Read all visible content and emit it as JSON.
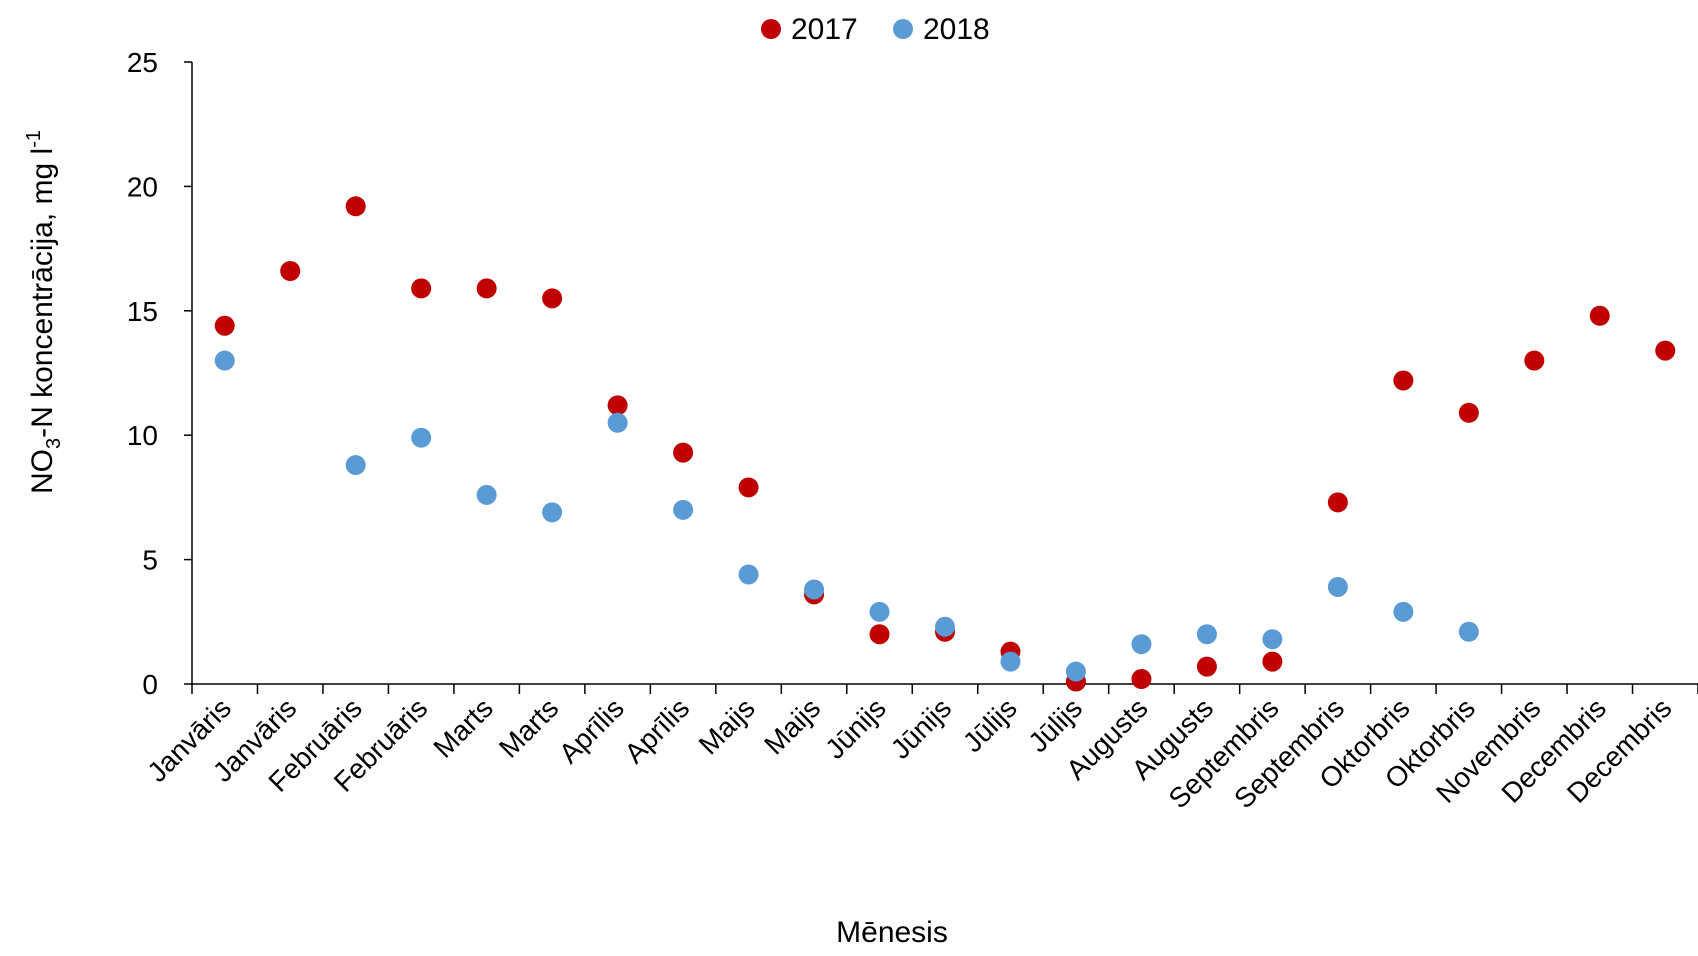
{
  "chart_data": {
    "type": "scatter",
    "xlabel": "Mēnesis",
    "ylabel": {
      "prefix": "NO",
      "sub": "3",
      "mid": "-N koncentrācija, mg l",
      "sup": "-1"
    },
    "ylim": [
      0,
      25
    ],
    "yticks": [
      0,
      5,
      10,
      15,
      20,
      25
    ],
    "legend_position": "top-center",
    "categories": [
      "Janvāris",
      "Janvāris",
      "Februāris",
      "Februāris",
      "Marts",
      "Marts",
      "Aprīlis",
      "Aprīlis",
      "Maijs",
      "Maijs",
      "Jūnijs",
      "Jūnijs",
      "Jūlijs",
      "Jūlijs",
      "Augusts",
      "Augusts",
      "Septembris",
      "Septembris",
      "Oktorbris",
      "Oktorbris",
      "Novembris",
      "Decembris",
      "Decembris"
    ],
    "series": [
      {
        "name": "2017",
        "color": "#c00000",
        "values": [
          14.4,
          16.6,
          19.2,
          15.9,
          15.9,
          15.5,
          11.2,
          9.3,
          7.9,
          3.6,
          2.0,
          2.1,
          1.3,
          0.1,
          0.2,
          0.7,
          0.9,
          7.3,
          12.2,
          10.9,
          13.0,
          14.8,
          13.4
        ]
      },
      {
        "name": "2018",
        "color": "#5b9bd5",
        "values": [
          13.0,
          null,
          8.8,
          9.9,
          7.6,
          6.9,
          10.5,
          7.0,
          4.4,
          3.8,
          2.9,
          2.3,
          0.9,
          0.5,
          1.6,
          2.0,
          1.8,
          3.9,
          2.9,
          2.1,
          null,
          null,
          null
        ]
      }
    ]
  }
}
